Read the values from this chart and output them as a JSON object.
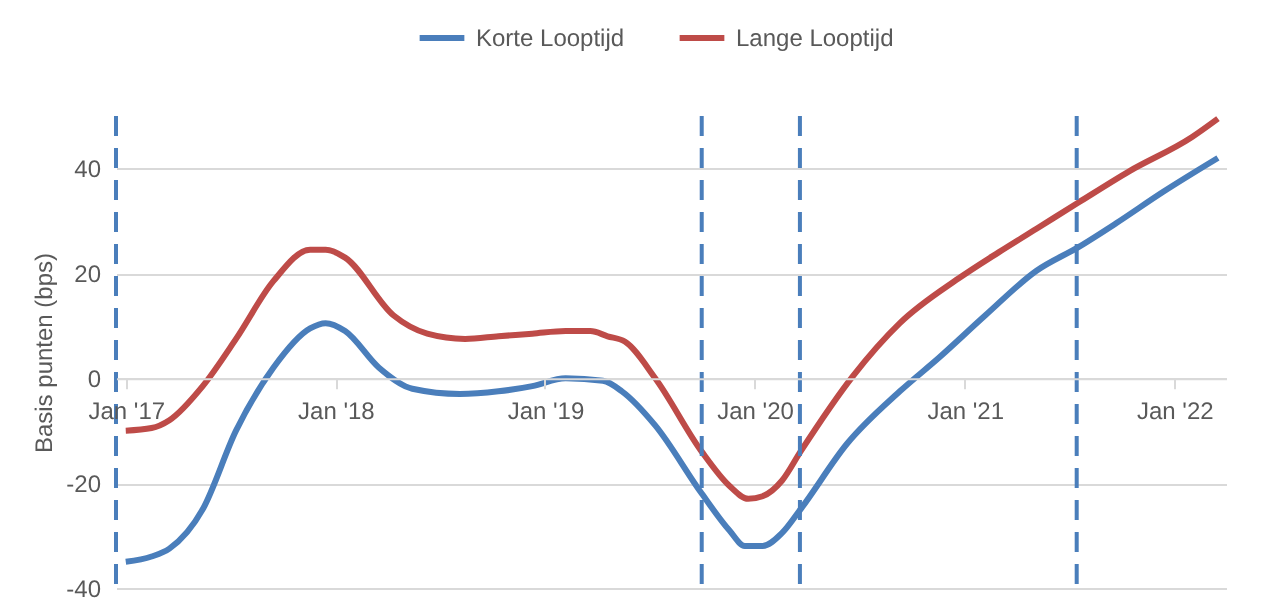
{
  "chart_data": {
    "type": "line",
    "ylabel": "Basis punten (bps)",
    "xlim": [
      "2016-12-15",
      "2022-04-01"
    ],
    "ylim": [
      -40,
      50
    ],
    "yticks": [
      -40,
      -20,
      0,
      20,
      40
    ],
    "xticks": [
      {
        "value": "2017-01-01",
        "label": "Jan '17"
      },
      {
        "value": "2018-01-01",
        "label": "Jan '18"
      },
      {
        "value": "2019-01-01",
        "label": "Jan '19"
      },
      {
        "value": "2020-01-01",
        "label": "Jan '20"
      },
      {
        "value": "2021-01-01",
        "label": "Jan '21"
      },
      {
        "value": "2022-01-01",
        "label": "Jan '22"
      }
    ],
    "grid": "y",
    "legend": "top",
    "line_style": "solid",
    "marker": "none",
    "series": [
      {
        "name": "Korte Looptijd",
        "color": "#4a7ebb",
        "x": [
          "2017-01-01",
          "2017-02-15",
          "2017-03-18",
          "2017-05-15",
          "2017-07-12",
          "2017-09-15",
          "2017-11-18",
          "2017-12-15",
          "2018-01-18",
          "2018-03-18",
          "2018-05-15",
          "2018-08-06",
          "2018-10-12",
          "2018-12-10",
          "2019-02-06",
          "2019-04-12",
          "2019-05-15",
          "2019-07-12",
          "2019-10-01",
          "2019-11-18",
          "2019-12-15",
          "2020-01-15",
          "2020-02-18",
          "2020-03-21",
          "2020-06-10",
          "2020-09-10",
          "2020-11-18",
          "2021-02-06",
          "2021-05-06",
          "2021-07-18",
          "2021-09-21",
          "2021-12-12",
          "2022-03-18"
        ],
        "values": [
          -35,
          -34,
          -32.5,
          -25,
          -10,
          2,
          9.5,
          10.5,
          9,
          2,
          -2,
          -3,
          -2.5,
          -1.5,
          0,
          -0.5,
          -2.5,
          -9,
          -22,
          -29,
          -32,
          -32,
          -29.5,
          -25,
          -12.5,
          -2.5,
          4,
          12,
          20.5,
          25,
          29.5,
          35.5,
          42
        ]
      },
      {
        "name": "Lange Looptijd",
        "color": "#be4b48",
        "x": [
          "2017-01-01",
          "2017-02-15",
          "2017-03-18",
          "2017-05-15",
          "2017-07-12",
          "2017-09-15",
          "2017-11-18",
          "2017-12-15",
          "2018-01-18",
          "2018-04-12",
          "2018-06-10",
          "2018-08-15",
          "2018-10-12",
          "2018-12-10",
          "2019-02-06",
          "2019-03-21",
          "2019-04-20",
          "2019-05-20",
          "2019-07-12",
          "2019-10-01",
          "2019-11-18",
          "2019-12-21",
          "2020-01-15",
          "2020-02-18",
          "2020-03-21",
          "2020-06-21",
          "2020-09-10",
          "2020-12-21",
          "2021-03-01",
          "2021-05-06",
          "2021-07-18",
          "2021-10-15",
          "2022-02-01",
          "2022-03-18"
        ],
        "values": [
          -10,
          -9.5,
          -8,
          -1.5,
          7.5,
          18.5,
          24.5,
          24.5,
          23,
          12,
          8.5,
          7.5,
          8,
          8.5,
          9,
          9,
          8,
          7,
          0,
          -14,
          -20.5,
          -23,
          -22.5,
          -19.5,
          -14,
          0.5,
          10.5,
          19,
          24,
          28.5,
          33.5,
          39.5,
          46,
          49.5
        ]
      }
    ],
    "ref_lines": [
      {
        "axis": "x",
        "value": "2016-12-15",
        "color": "#4a7ebb",
        "line_style": "dashed"
      },
      {
        "axis": "x",
        "value": "2019-10-01",
        "color": "#4a7ebb",
        "line_style": "dashed"
      },
      {
        "axis": "x",
        "value": "2020-03-20",
        "color": "#4a7ebb",
        "line_style": "dashed"
      },
      {
        "axis": "x",
        "value": "2021-07-15",
        "color": "#4a7ebb",
        "line_style": "dashed"
      }
    ]
  }
}
